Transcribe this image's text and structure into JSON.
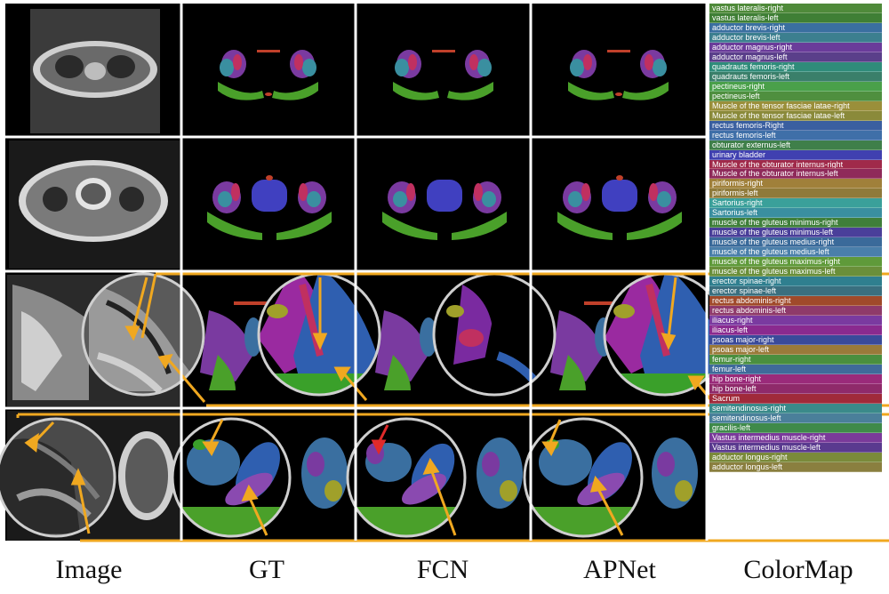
{
  "captions": [
    "Image",
    "GT",
    "FCN",
    "APNet",
    "ColorMap"
  ],
  "colormap": [
    {
      "label": "vastus lateralis-right",
      "color": "#4f8a3a"
    },
    {
      "label": "vastus lateralis-left",
      "color": "#3f7f35"
    },
    {
      "label": "adductor brevis-right",
      "color": "#3a6fa0"
    },
    {
      "label": "adductor brevis-left",
      "color": "#3c7f8f"
    },
    {
      "label": "adductor magnus-right",
      "color": "#6a3c9a"
    },
    {
      "label": "adductor magnus-left",
      "color": "#5a3f8a"
    },
    {
      "label": "quadrauts femoris-right",
      "color": "#2f8c7a"
    },
    {
      "label": "quadrauts femoris-left",
      "color": "#3a7f6a"
    },
    {
      "label": "pectineus-right",
      "color": "#4aa04a"
    },
    {
      "label": "pectineus-left",
      "color": "#4f8f3f"
    },
    {
      "label": "Muscle of the tensor fasciae latae-right",
      "color": "#9a8f3a"
    },
    {
      "label": "Muscle of the tensor fasciae latae-left",
      "color": "#8a8a3a"
    },
    {
      "label": "rectus femoris-Right",
      "color": "#3a5fa0"
    },
    {
      "label": "rectus femoris-left",
      "color": "#3f6fa8"
    },
    {
      "label": "obturator externus-left",
      "color": "#3f7f4a"
    },
    {
      "label": "urinary bladder",
      "color": "#4040b0"
    },
    {
      "label": "Muscle of the obturator internus-right",
      "color": "#a02a4a"
    },
    {
      "label": "Muscle of the obturator internus-left",
      "color": "#8f2a5a"
    },
    {
      "label": "piriformis-right",
      "color": "#a0803a"
    },
    {
      "label": "piriformis-left",
      "color": "#8f7a3a"
    },
    {
      "label": "Sartorius-right",
      "color": "#3aa09a"
    },
    {
      "label": "Sartorius-left",
      "color": "#3a8fa0"
    },
    {
      "label": "muscle of the gluteus minimus-right",
      "color": "#3f7f3a"
    },
    {
      "label": "muscle of the gluteus minimus-left",
      "color": "#4a3f9a"
    },
    {
      "label": "muscle of the gluteus medius-right",
      "color": "#3a6a9a"
    },
    {
      "label": "muscle of the gluteus medius-left",
      "color": "#4a7faa"
    },
    {
      "label": "muscle of the gluteus maximus-right",
      "color": "#5f9a3a"
    },
    {
      "label": "muscle of the gluteus maximus-left",
      "color": "#6a8f3a"
    },
    {
      "label": "erector spinae-right",
      "color": "#2f7f8f"
    },
    {
      "label": "erector spinae-left",
      "color": "#3a6f7f"
    },
    {
      "label": "rectus abdominis-right",
      "color": "#a04a2a"
    },
    {
      "label": "rectus abdominis-left",
      "color": "#8f3a6a"
    },
    {
      "label": "iliacus-right",
      "color": "#7a3aa0"
    },
    {
      "label": "iliacus-left",
      "color": "#8a2a8f"
    },
    {
      "label": "psoas major-right",
      "color": "#3a4a9a"
    },
    {
      "label": "psoas major-left",
      "color": "#9a7a3a"
    },
    {
      "label": "femur-right",
      "color": "#4a8f3f"
    },
    {
      "label": "femur-left",
      "color": "#3f6a9a"
    },
    {
      "label": "hip bone-right",
      "color": "#9a2a7a"
    },
    {
      "label": "hip bone-left",
      "color": "#8f2a6a"
    },
    {
      "label": "Sacrum",
      "color": "#a02a3a"
    },
    {
      "label": "semitendinosus-right",
      "color": "#3a8a8a"
    },
    {
      "label": "semitendinosus-left",
      "color": "#4a7f9a"
    },
    {
      "label": "gracilis-left",
      "color": "#3f8a4a"
    },
    {
      "label": "Vastus intermedius muscle-right",
      "color": "#7a3a9a"
    },
    {
      "label": "Vastus intermedius muscle-left",
      "color": "#5a3a8f"
    },
    {
      "label": "adductor longus-right",
      "color": "#7a8a3a"
    },
    {
      "label": "adductor longus-left",
      "color": "#8a7f3f"
    }
  ]
}
